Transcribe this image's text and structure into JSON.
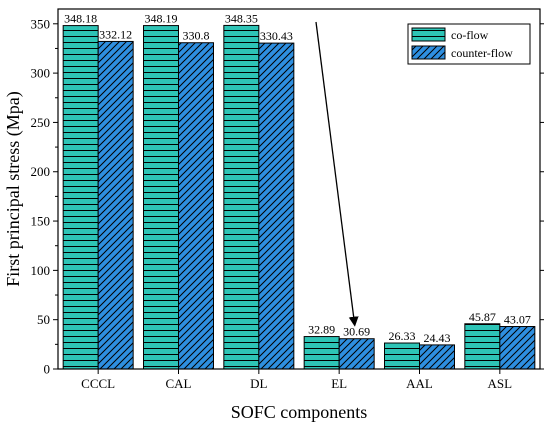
{
  "chart_data": {
    "type": "bar",
    "title": "",
    "xlabel": "SOFC components",
    "ylabel": "First principal stress (Mpa)",
    "categories": [
      "CCCL",
      "CAL",
      "DL",
      "EL",
      "AAL",
      "ASL"
    ],
    "series": [
      {
        "name": "co-flow",
        "values": [
          348.18,
          348.19,
          348.35,
          32.89,
          26.33,
          45.87
        ],
        "color": "#2ec4b6",
        "pattern": "horizontal-lines"
      },
      {
        "name": "counter-flow",
        "values": [
          332.12,
          330.8,
          330.43,
          30.69,
          24.43,
          43.07
        ],
        "color": "#2e8fe0",
        "pattern": "diagonal-lines"
      }
    ],
    "data_labels": [
      [
        "348.18",
        "348.19",
        "348.35",
        "32.89",
        "26.33",
        "45.87"
      ],
      [
        "332.12",
        "330.8",
        "330.43",
        "30.69",
        "24.43",
        "43.07"
      ]
    ],
    "ylim": [
      0,
      365
    ],
    "yticks": [
      0,
      50,
      100,
      150,
      200,
      250,
      300,
      350
    ],
    "grid": false,
    "legend_position": "top-right",
    "annotation": "arrow pointing down toward EL counter-flow bar"
  }
}
